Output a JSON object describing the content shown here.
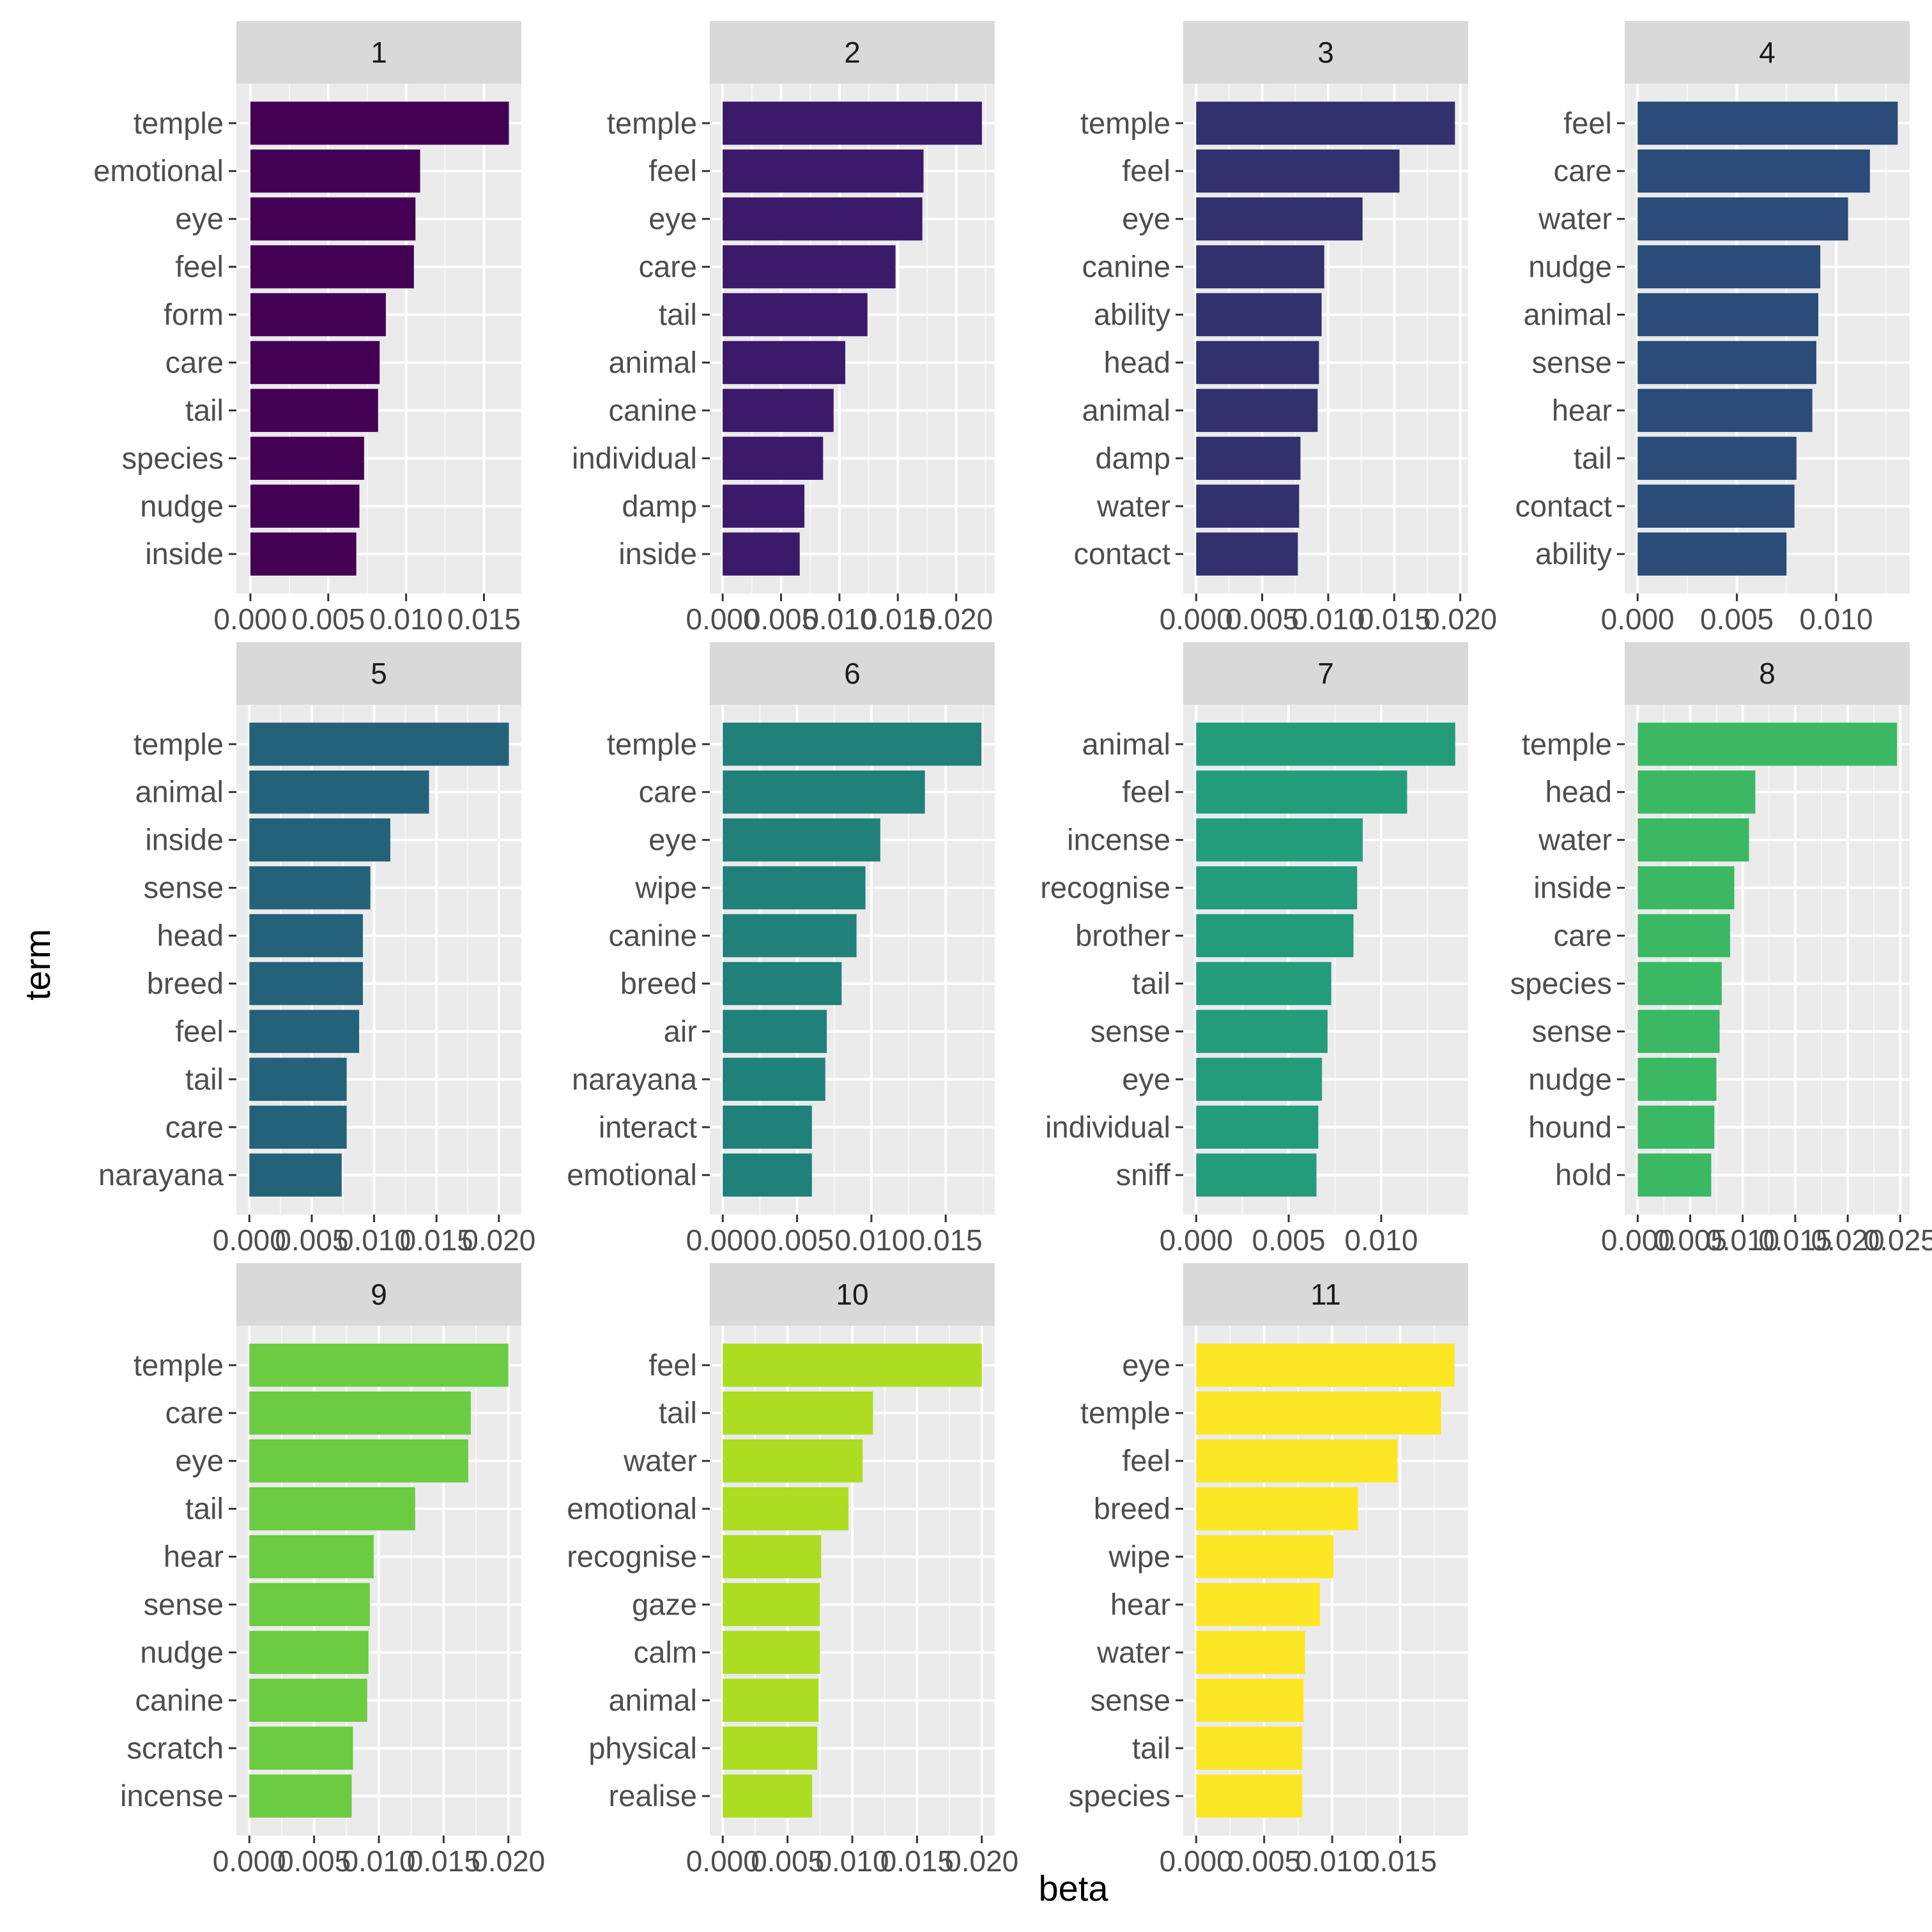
{
  "chart_data": {
    "type": "bar",
    "orientation": "horizontal",
    "layout": "facet-grid-4-columns",
    "xlabel": "beta",
    "ylabel": "term",
    "grid": true,
    "panels": [
      {
        "title": "1",
        "color": "#440154",
        "categories": [
          "temple",
          "emotional",
          "eye",
          "feel",
          "form",
          "care",
          "tail",
          "species",
          "nudge",
          "inside"
        ],
        "values": [
          0.0166,
          0.0109,
          0.0106,
          0.0105,
          0.0087,
          0.0083,
          0.0082,
          0.0073,
          0.007,
          0.0068
        ],
        "xlim": [
          -0.0009,
          0.0174
        ],
        "ticks": [
          0.0,
          0.005,
          0.01,
          0.015
        ],
        "tick_labels": [
          "0.000",
          "0.005",
          "0.010",
          "0.015"
        ]
      },
      {
        "title": "2",
        "color": "#3B1A6B",
        "categories": [
          "temple",
          "feel",
          "eye",
          "care",
          "tail",
          "animal",
          "canine",
          "individual",
          "damp",
          "inside"
        ],
        "values": [
          0.0222,
          0.0172,
          0.0171,
          0.0148,
          0.0124,
          0.0105,
          0.0095,
          0.0086,
          0.007,
          0.0066
        ],
        "xlim": [
          -0.0011,
          0.0233
        ],
        "ticks": [
          0.0,
          0.005,
          0.01,
          0.015,
          0.02
        ],
        "tick_labels": [
          "0.000",
          "0.005",
          "0.010",
          "0.015",
          "0.020"
        ]
      },
      {
        "title": "3",
        "color": "#33306E",
        "categories": [
          "temple",
          "feel",
          "eye",
          "canine",
          "ability",
          "head",
          "animal",
          "damp",
          "water",
          "contact"
        ],
        "values": [
          0.0196,
          0.0154,
          0.0126,
          0.0097,
          0.0095,
          0.0093,
          0.0092,
          0.0079,
          0.0078,
          0.0077
        ],
        "xlim": [
          -0.00098,
          0.0206
        ],
        "ticks": [
          0.0,
          0.005,
          0.01,
          0.015,
          0.02
        ],
        "tick_labels": [
          "0.000",
          "0.005",
          "0.010",
          "0.015",
          "0.020"
        ]
      },
      {
        "title": "4",
        "color": "#2B4B78",
        "categories": [
          "feel",
          "care",
          "water",
          "nudge",
          "animal",
          "sense",
          "hear",
          "tail",
          "contact",
          "ability"
        ],
        "values": [
          0.0131,
          0.0117,
          0.0106,
          0.0092,
          0.0091,
          0.009,
          0.0088,
          0.008,
          0.0079,
          0.0075
        ],
        "xlim": [
          -0.00065,
          0.0137
        ],
        "ticks": [
          0.0,
          0.005,
          0.01
        ],
        "tick_labels": [
          "0.000",
          "0.005",
          "0.010"
        ]
      },
      {
        "title": "5",
        "color": "#24627A",
        "categories": [
          "temple",
          "animal",
          "inside",
          "sense",
          "head",
          "breed",
          "feel",
          "tail",
          "care",
          "narayana"
        ],
        "values": [
          0.0208,
          0.0144,
          0.0113,
          0.0097,
          0.0091,
          0.0091,
          0.0088,
          0.0078,
          0.0078,
          0.0074
        ],
        "xlim": [
          -0.00104,
          0.0218
        ],
        "ticks": [
          0.0,
          0.005,
          0.01,
          0.015,
          0.02
        ],
        "tick_labels": [
          "0.000",
          "0.005",
          "0.010",
          "0.015",
          "0.020"
        ]
      },
      {
        "title": "6",
        "color": "#20807A",
        "categories": [
          "temple",
          "care",
          "eye",
          "wipe",
          "canine",
          "breed",
          "air",
          "narayana",
          "interact",
          "emotional"
        ],
        "values": [
          0.0174,
          0.0136,
          0.0106,
          0.0096,
          0.009,
          0.008,
          0.007,
          0.0069,
          0.006,
          0.006
        ],
        "xlim": [
          -0.00087,
          0.0183
        ],
        "ticks": [
          0.0,
          0.005,
          0.01,
          0.015
        ],
        "tick_labels": [
          "0.000",
          "0.005",
          "0.010",
          "0.015"
        ]
      },
      {
        "title": "7",
        "color": "#229C79",
        "categories": [
          "animal",
          "feel",
          "incense",
          "recognise",
          "brother",
          "tail",
          "sense",
          "eye",
          "individual",
          "sniff"
        ],
        "values": [
          0.014,
          0.0114,
          0.009,
          0.0087,
          0.0085,
          0.0073,
          0.0071,
          0.0068,
          0.0066,
          0.0065
        ],
        "xlim": [
          -0.0007,
          0.0147
        ],
        "ticks": [
          0.0,
          0.005,
          0.01
        ],
        "tick_labels": [
          "0.000",
          "0.005",
          "0.010"
        ]
      },
      {
        "title": "8",
        "color": "#3BB863",
        "categories": [
          "temple",
          "head",
          "water",
          "inside",
          "care",
          "species",
          "sense",
          "nudge",
          "hound",
          "hold"
        ],
        "values": [
          0.0247,
          0.0112,
          0.0106,
          0.0092,
          0.0088,
          0.008,
          0.0078,
          0.0075,
          0.0073,
          0.007
        ],
        "xlim": [
          -0.00124,
          0.0259
        ],
        "ticks": [
          0.0,
          0.005,
          0.01,
          0.015,
          0.02,
          0.025
        ],
        "tick_labels": [
          "0.000",
          "0.005",
          "0.010",
          "0.015",
          "0.020",
          "0.025"
        ]
      },
      {
        "title": "9",
        "color": "#6BCB41",
        "categories": [
          "temple",
          "care",
          "eye",
          "tail",
          "hear",
          "sense",
          "nudge",
          "canine",
          "scratch",
          "incense"
        ],
        "values": [
          0.02,
          0.0171,
          0.0169,
          0.0128,
          0.0096,
          0.0093,
          0.0092,
          0.0091,
          0.008,
          0.0079
        ],
        "xlim": [
          -0.001,
          0.021
        ],
        "ticks": [
          0.0,
          0.005,
          0.01,
          0.015,
          0.02
        ],
        "tick_labels": [
          "0.000",
          "0.005",
          "0.010",
          "0.015",
          "0.020"
        ]
      },
      {
        "title": "10",
        "color": "#ACDD20",
        "categories": [
          "feel",
          "tail",
          "water",
          "emotional",
          "recognise",
          "gaze",
          "calm",
          "animal",
          "physical",
          "realise"
        ],
        "values": [
          0.02,
          0.0116,
          0.0108,
          0.0097,
          0.0076,
          0.0075,
          0.0075,
          0.0074,
          0.0073,
          0.0069
        ],
        "xlim": [
          -0.001,
          0.021
        ],
        "ticks": [
          0.0,
          0.005,
          0.01,
          0.015,
          0.02
        ],
        "tick_labels": [
          "0.000",
          "0.005",
          "0.010",
          "0.015",
          "0.020"
        ]
      },
      {
        "title": "11",
        "color": "#FDE725",
        "categories": [
          "eye",
          "temple",
          "feel",
          "breed",
          "wipe",
          "hear",
          "water",
          "sense",
          "tail",
          "species"
        ],
        "values": [
          0.019,
          0.018,
          0.0148,
          0.0119,
          0.0101,
          0.0091,
          0.008,
          0.0079,
          0.0078,
          0.0078
        ],
        "xlim": [
          -0.00095,
          0.02
        ],
        "ticks": [
          0.0,
          0.005,
          0.01,
          0.015
        ],
        "tick_labels": [
          "0.000",
          "0.005",
          "0.010",
          "0.015"
        ]
      }
    ]
  }
}
